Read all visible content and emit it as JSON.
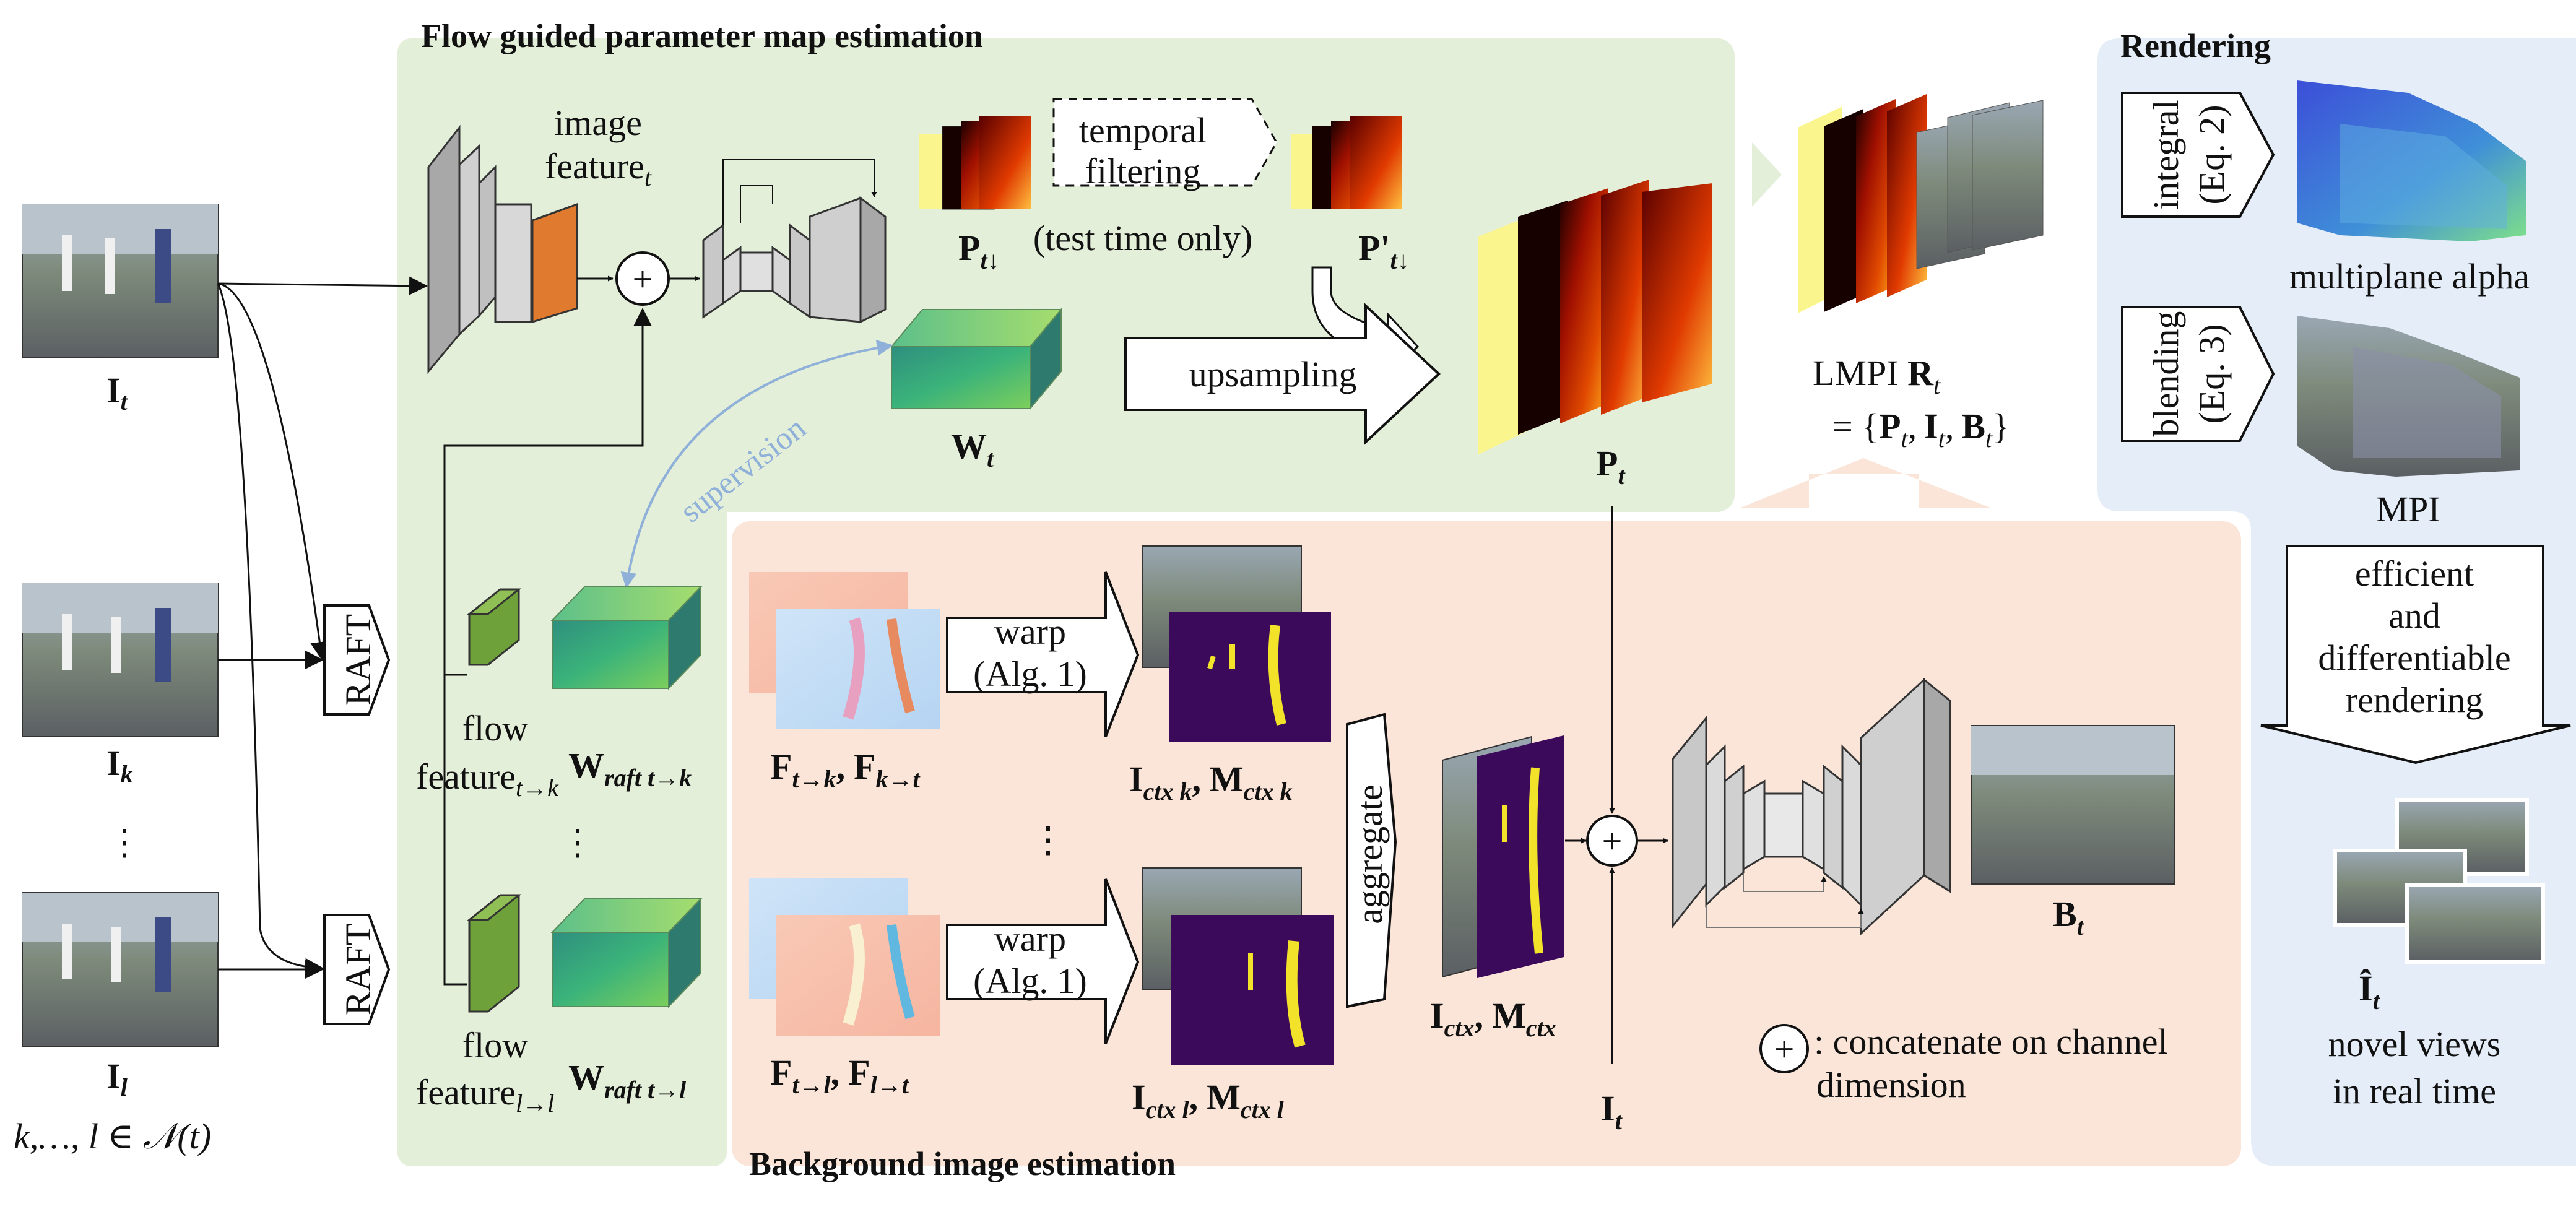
{
  "sections": {
    "flow": "Flow guided parameter map estimation",
    "background": "Background image estimation",
    "rendering": "Rendering"
  },
  "labels": {
    "image_feature_1": "image",
    "image_feature_2": "feature",
    "image_feature_sub": "t",
    "temporal_1": "temporal",
    "temporal_2": "filtering",
    "test_time": "(test time only)",
    "upsampling": "upsampling",
    "supervision": "supervision",
    "raft": "RAFT",
    "flow_word": "flow",
    "feature_word": "feature",
    "flow_sub_k": "t→k",
    "flow_sub_l": "l→l",
    "warp_1": "warp",
    "warp_2": "(Alg. 1)",
    "aggregate": "aggregate",
    "lmpi_prefix": "LMPI ",
    "integral": "integral",
    "eq2": "(Eq. 2)",
    "blending": "blending",
    "eq3": "(Eq. 3)",
    "multiplane_alpha": "multiplane alpha",
    "mpi": "MPI",
    "efficient": "efficient",
    "and": "and",
    "differentiable": "differentiable",
    "rendering_word": "rendering",
    "novel_views": "novel views",
    "in_real_time": "in real time",
    "concat_legend_1": ": concatenate on channel",
    "concat_legend_2": "dimension",
    "vdots": "⋮",
    "neighborhood": "k,…, l ∈ 𝒩(t)"
  },
  "math": {
    "I": "I",
    "P": "P",
    "Pp": "P'",
    "W": "W",
    "R": "R",
    "B": "B",
    "F": "F",
    "M": "M",
    "Ihat": "Î",
    "t": "t",
    "k": "k",
    "l": "l",
    "t_down": "t↓",
    "raft_tk": "raft t→k",
    "raft_tl": "raft t→l",
    "ftk": "t→k",
    "fkt": "k→t",
    "ftl": "t→l",
    "flt": "l→t",
    "ctx": "ctx",
    "ctx_k": "ctx k",
    "ctx_l": "ctx l",
    "comma": ",",
    "eq_open": "= {",
    "eq_close": "}",
    "plus": "+"
  },
  "colors": {
    "green_panel": "#e4efd9",
    "peach_panel": "#fbe5d8",
    "blue_panel": "#e5eef8",
    "orange_feature": "#e07a2e",
    "green_feature": "#6ea13a",
    "purple_mask": "#3b0a5a",
    "yellow_mask": "#f2e22a",
    "yellow_plane": "#fbf58e",
    "supervision_blue": "#8fb0d8"
  }
}
